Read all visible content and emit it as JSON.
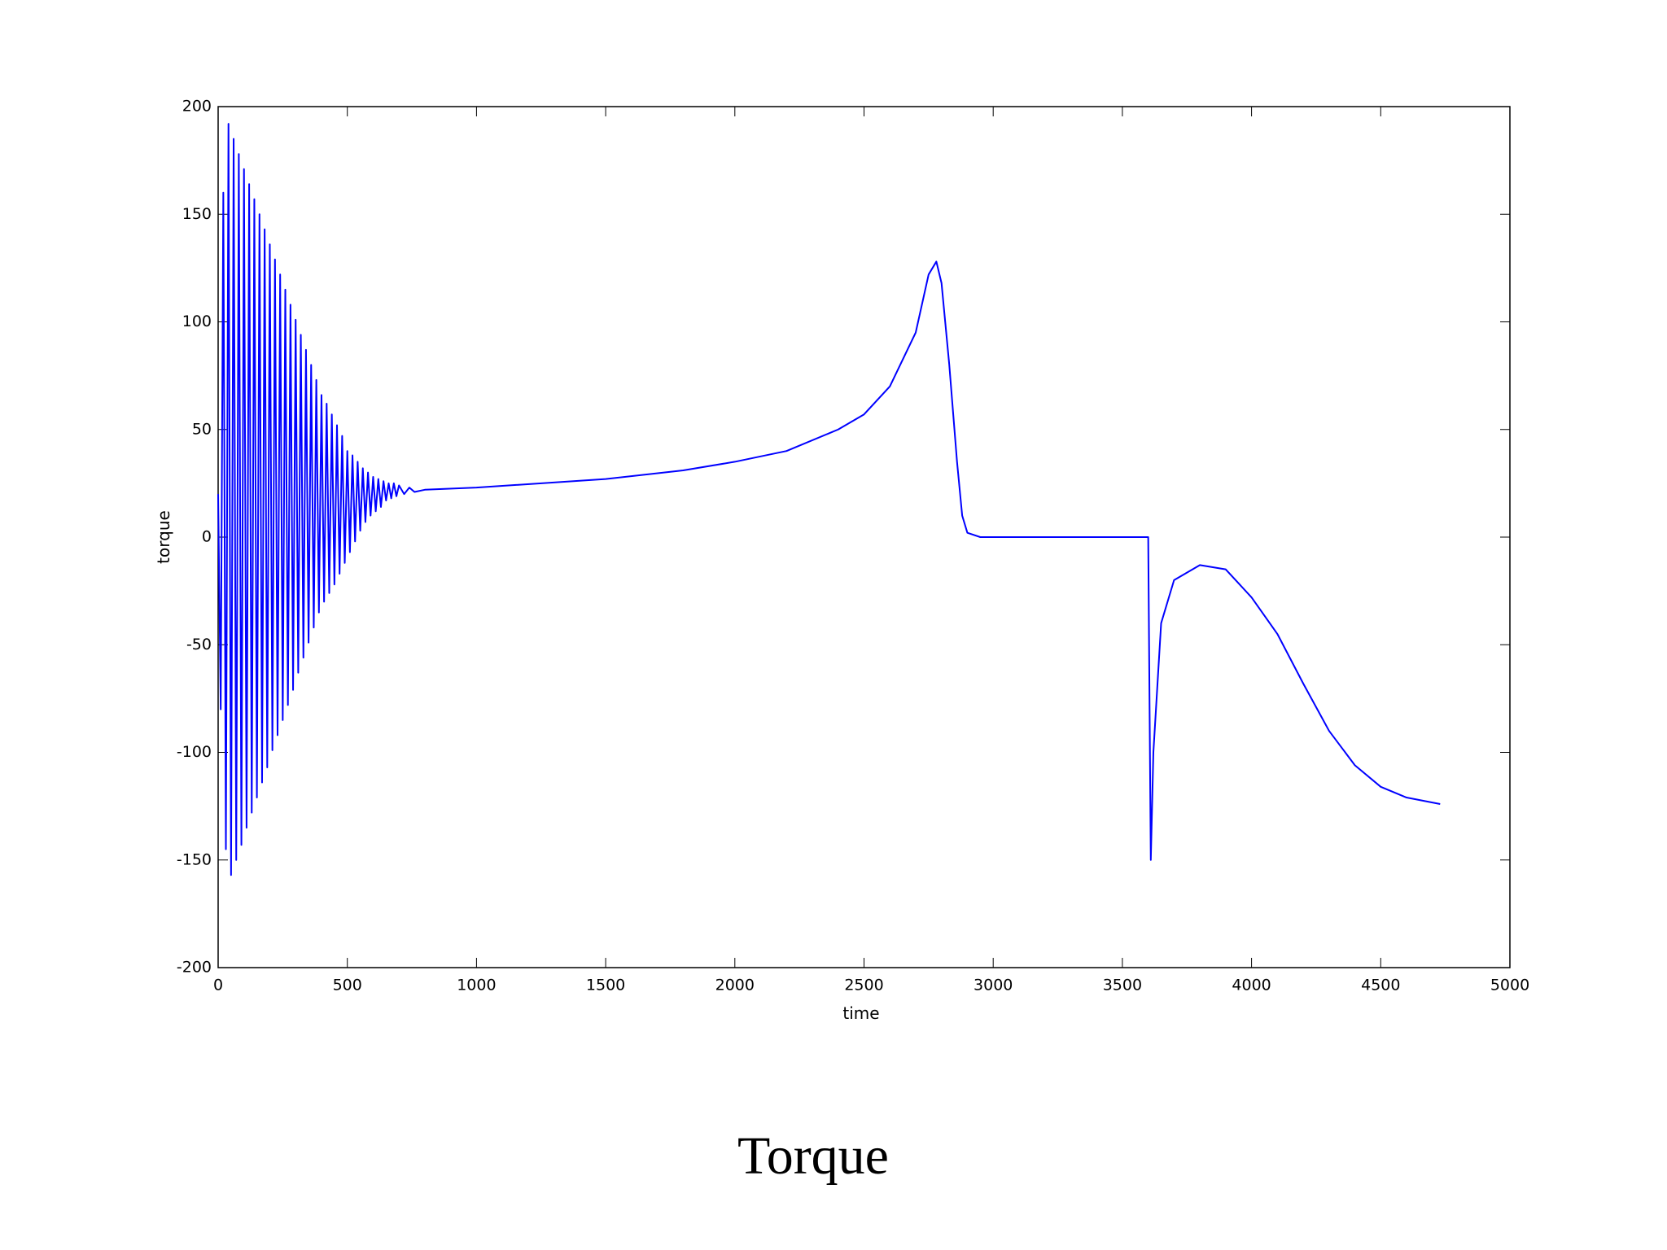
{
  "chart_data": {
    "type": "line",
    "title": "Torque",
    "x_label": "time",
    "y_label": "torque",
    "x": [
      0,
      10,
      20,
      30,
      40,
      50,
      60,
      70,
      80,
      90,
      100,
      110,
      120,
      130,
      140,
      150,
      160,
      170,
      180,
      190,
      200,
      210,
      220,
      230,
      240,
      250,
      260,
      270,
      280,
      290,
      300,
      310,
      320,
      330,
      340,
      350,
      360,
      370,
      380,
      390,
      400,
      410,
      420,
      430,
      440,
      450,
      460,
      470,
      480,
      490,
      500,
      510,
      520,
      530,
      540,
      550,
      560,
      570,
      580,
      590,
      600,
      610,
      620,
      630,
      640,
      650,
      660,
      670,
      680,
      690,
      700,
      720,
      740,
      760,
      800,
      1000,
      1500,
      1800,
      2000,
      2200,
      2400,
      2500,
      2600,
      2700,
      2750,
      2780,
      2800,
      2830,
      2860,
      2880,
      2900,
      2950,
      3600,
      3610,
      3620,
      3650,
      3700,
      3800,
      3900,
      4000,
      4100,
      4200,
      4300,
      4400,
      4500,
      4600,
      4730
    ],
    "series": [
      {
        "name": "torque",
        "color": "#0000ff",
        "values": [
          20,
          -80,
          160,
          -145,
          192,
          -157,
          185,
          -150,
          178,
          -143,
          171,
          -135,
          164,
          -128,
          157,
          -121,
          150,
          -114,
          143,
          -107,
          136,
          -99,
          129,
          -92,
          122,
          -85,
          115,
          -78,
          108,
          -71,
          101,
          -63,
          94,
          -56,
          87,
          -49,
          80,
          -42,
          73,
          -35,
          66,
          -30,
          62,
          -26,
          57,
          -22,
          52,
          -17,
          47,
          -12,
          40,
          -7,
          38,
          -2,
          35,
          3,
          32,
          7,
          30,
          10,
          28,
          12,
          27,
          14,
          26,
          17,
          25,
          18,
          25,
          19,
          24,
          20,
          23,
          21,
          22,
          23,
          27,
          31,
          35,
          40,
          50,
          57,
          70,
          95,
          122,
          128,
          118,
          80,
          35,
          10,
          2,
          0,
          0,
          -150,
          -100,
          -40,
          -20,
          -13,
          -15,
          -28,
          -45,
          -68,
          -90,
          -106,
          -116,
          -121,
          -124
        ]
      }
    ],
    "xlim": [
      0,
      5000
    ],
    "xticks": [
      0,
      500,
      1000,
      1500,
      2000,
      2500,
      3000,
      3500,
      4000,
      4500,
      5000
    ],
    "ylim": [
      -200,
      200
    ],
    "yticks": [
      -200,
      -150,
      -100,
      -50,
      0,
      50,
      100,
      150,
      200
    ]
  }
}
